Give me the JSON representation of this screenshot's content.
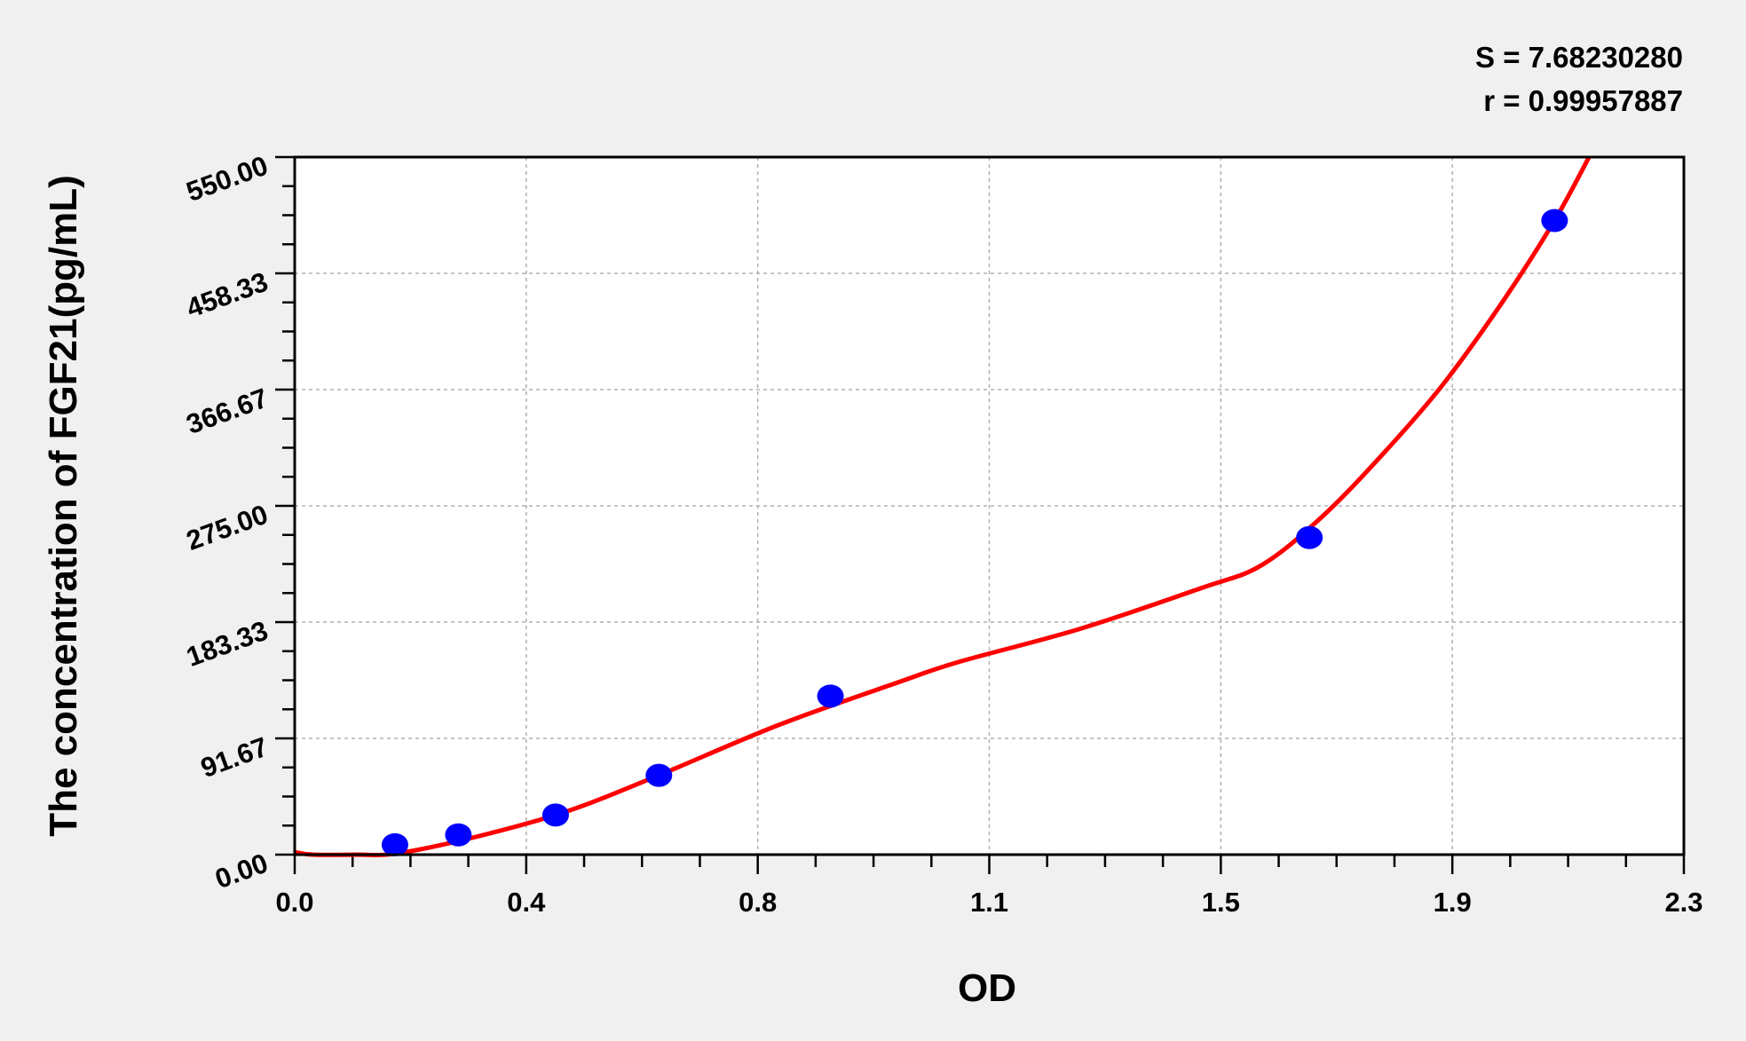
{
  "chart_data": {
    "type": "scatter",
    "xlabel": "OD",
    "ylabel": "The concentration of FGF21(pg/mL)",
    "xlim": [
      0,
      2.3
    ],
    "ylim": [
      0,
      550
    ],
    "x_tick_labels": [
      "0.0",
      "0.4",
      "0.8",
      "1.1",
      "1.5",
      "1.9",
      "2.3"
    ],
    "y_tick_labels": [
      "0.00",
      "91.67",
      "183.33",
      "275.00",
      "366.67",
      "458.33",
      "550.00"
    ],
    "grid": true,
    "annotations": {
      "s": "S = 7.68230280",
      "r": "r = 0.99957887"
    },
    "points": [
      {
        "x": 0.166,
        "y": 7.8
      },
      {
        "x": 0.271,
        "y": 15.6
      },
      {
        "x": 0.432,
        "y": 31.25
      },
      {
        "x": 0.603,
        "y": 62.5
      },
      {
        "x": 0.887,
        "y": 125
      },
      {
        "x": 1.68,
        "y": 250
      },
      {
        "x": 2.086,
        "y": 500
      }
    ],
    "fit_curve": [
      {
        "x": 0.0,
        "y": 2
      },
      {
        "x": 0.03,
        "y": 0
      },
      {
        "x": 0.1,
        "y": 0
      },
      {
        "x": 0.17,
        "y": 1
      },
      {
        "x": 0.3,
        "y": 14
      },
      {
        "x": 0.45,
        "y": 34
      },
      {
        "x": 0.6,
        "y": 62
      },
      {
        "x": 0.8,
        "y": 102
      },
      {
        "x": 1.0,
        "y": 136
      },
      {
        "x": 1.1,
        "y": 152
      },
      {
        "x": 1.3,
        "y": 178
      },
      {
        "x": 1.5,
        "y": 210
      },
      {
        "x": 1.6,
        "y": 228
      },
      {
        "x": 1.7,
        "y": 266
      },
      {
        "x": 1.8,
        "y": 315
      },
      {
        "x": 1.9,
        "y": 370
      },
      {
        "x": 2.0,
        "y": 436
      },
      {
        "x": 2.086,
        "y": 500
      },
      {
        "x": 2.143,
        "y": 550
      }
    ],
    "colors": {
      "points": "#0000ff",
      "curve": "#ff0000",
      "grid": "#b0b0b0",
      "plot_bg": "#ffffff",
      "page_bg": "#f0f0f0"
    }
  }
}
